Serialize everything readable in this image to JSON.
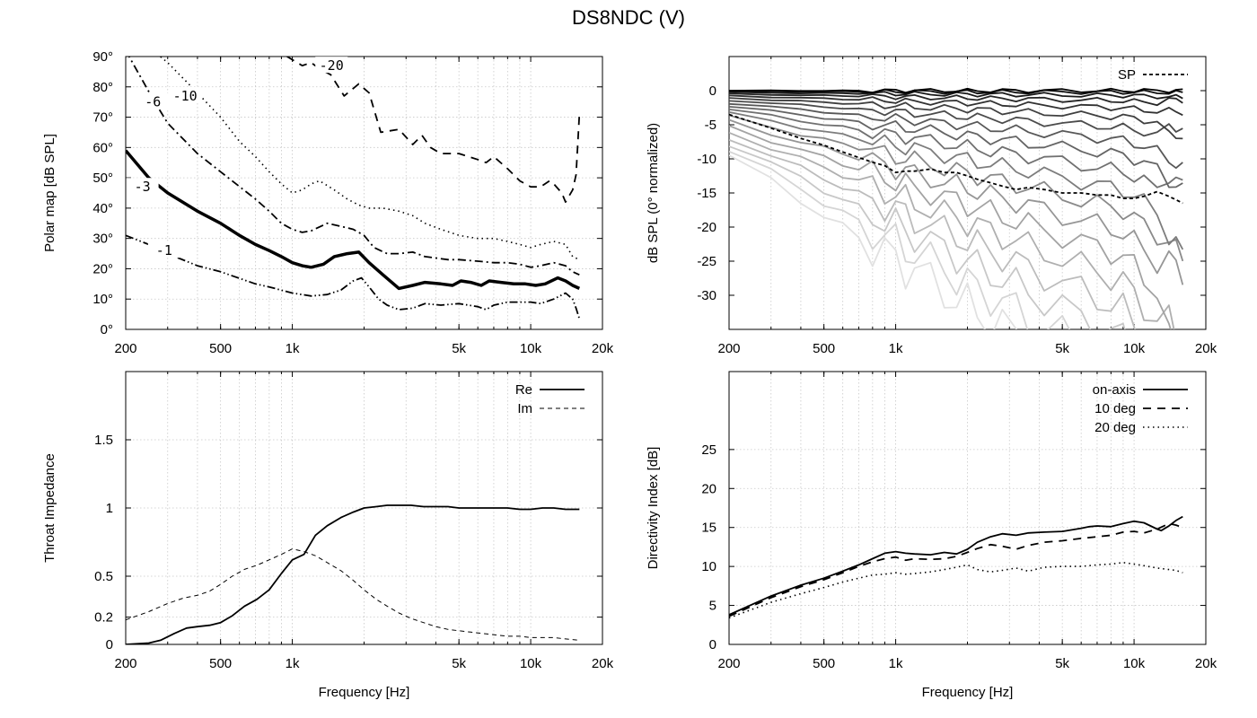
{
  "title": "DS8NDC (V)",
  "chart_data": [
    {
      "id": "polar",
      "type": "line",
      "xscale": "log",
      "xlim": [
        200,
        20000
      ],
      "ylim": [
        0,
        90
      ],
      "xticks": [
        200,
        500,
        1000,
        5000,
        10000,
        20000
      ],
      "xtick_labels": [
        "200",
        "500",
        "1k",
        "5k",
        "10k",
        "20k"
      ],
      "yticks": [
        0,
        10,
        20,
        30,
        40,
        50,
        60,
        70,
        80,
        90
      ],
      "ytick_labels": [
        "0°",
        "10°",
        "20°",
        "30°",
        "40°",
        "50°",
        "60°",
        "70°",
        "80°",
        "90°"
      ],
      "xlabel": "",
      "ylabel": "Polar map [dB SPL]",
      "series": [
        {
          "name": "-1",
          "label_at": [
            290,
            26
          ],
          "style": "dashdotdot",
          "x": [
            200,
            250,
            300,
            400,
            500,
            700,
            800,
            1000,
            1200,
            1400,
            1600,
            1800,
            1950,
            2100,
            2300,
            2500,
            2800,
            3200,
            3600,
            4200,
            5000,
            6000,
            6500,
            7000,
            8000,
            9000,
            10000,
            11000,
            12500,
            14000,
            15000,
            15500,
            16000
          ],
          "y": [
            31,
            28,
            25,
            21,
            19,
            15,
            14,
            12,
            11,
            11.5,
            13,
            16,
            17,
            14,
            10,
            8,
            6.5,
            7,
            8.5,
            8,
            8.5,
            7.5,
            6.5,
            8,
            9,
            9,
            9,
            8.5,
            10,
            12,
            10,
            7,
            3.5
          ]
        },
        {
          "name": "-3",
          "label_at": [
            235,
            47
          ],
          "style": "thick",
          "x": [
            200,
            250,
            300,
            400,
            500,
            600,
            700,
            800,
            900,
            1000,
            1100,
            1200,
            1350,
            1500,
            1700,
            1900,
            2100,
            2400,
            2800,
            3200,
            3600,
            4200,
            4700,
            5100,
            5600,
            6200,
            6700,
            7500,
            8500,
            9500,
            10500,
            11500,
            13000,
            14000,
            15000,
            16000
          ],
          "y": [
            59,
            50,
            45,
            39,
            35,
            31,
            28,
            26,
            24,
            22,
            21,
            20.5,
            21.5,
            24,
            25,
            25.5,
            22,
            18,
            13.5,
            14.5,
            15.5,
            15,
            14.5,
            16,
            15.5,
            14.5,
            16,
            15.5,
            15,
            15,
            14.5,
            15,
            17,
            16,
            14.5,
            13.5
          ]
        },
        {
          "name": "-6",
          "label_at": [
            260,
            75
          ],
          "style": "dashdot",
          "x": [
            200,
            260,
            300,
            400,
            500,
            700,
            800,
            900,
            1000,
            1100,
            1200,
            1400,
            1600,
            1800,
            2000,
            2200,
            2500,
            2800,
            3200,
            3600,
            4500,
            5000,
            6000,
            7000,
            8000,
            9000,
            10000,
            11000,
            12500,
            14000,
            15000,
            16000
          ],
          "y": [
            92,
            76,
            68,
            58,
            52,
            43,
            39,
            35,
            33,
            32,
            32.5,
            35,
            34,
            33,
            31,
            27,
            25,
            25,
            25.5,
            24,
            23,
            23,
            22.5,
            22,
            22,
            21.5,
            20.5,
            21,
            22,
            21,
            19,
            18
          ]
        },
        {
          "name": "-10",
          "label_at": [
            355,
            77
          ],
          "style": "dotted",
          "x": [
            260,
            300,
            400,
            500,
            600,
            700,
            800,
            900,
            1000,
            1100,
            1200,
            1300,
            1500,
            1700,
            1900,
            2100,
            2400,
            2800,
            3200,
            3600,
            4200,
            5000,
            6000,
            7000,
            8000,
            9000,
            10000,
            11000,
            12500,
            14000,
            15000,
            16000
          ],
          "y": [
            92,
            88,
            78,
            70,
            62,
            57,
            52,
            48,
            45,
            46,
            48,
            49,
            46,
            43,
            41,
            40,
            40,
            39,
            37.5,
            35,
            33,
            31,
            30,
            30,
            29,
            28,
            27,
            28,
            29,
            28,
            24,
            23
          ]
        },
        {
          "name": "-20",
          "label_at": [
            1460,
            87
          ],
          "style": "dashed",
          "x": [
            950,
            1100,
            1200,
            1300,
            1450,
            1650,
            1900,
            2100,
            2350,
            2800,
            3200,
            3500,
            3800,
            4200,
            5000,
            6000,
            6500,
            7000,
            8000,
            9000,
            10000,
            11000,
            12000,
            12500,
            13500,
            14000,
            15000,
            15500,
            16000
          ],
          "y": [
            90,
            87,
            88,
            86,
            84,
            77,
            81,
            78,
            65,
            66,
            61,
            64,
            60,
            58,
            58,
            56,
            55,
            57,
            53,
            49,
            47,
            47,
            49,
            48,
            45,
            42,
            46,
            51,
            71
          ]
        }
      ]
    },
    {
      "id": "normalized",
      "type": "line",
      "xscale": "log",
      "xlim": [
        200,
        20000
      ],
      "ylim": [
        -35,
        5
      ],
      "xticks": [
        200,
        500,
        1000,
        5000,
        10000,
        20000
      ],
      "xtick_labels": [
        "200",
        "500",
        "1k",
        "5k",
        "10k",
        "20k"
      ],
      "yticks": [
        0,
        -5,
        -10,
        -15,
        -20,
        -25,
        -30
      ],
      "ytick_labels": [
        "0",
        "-5",
        "-10",
        "-15",
        "-20",
        "-25",
        "-30"
      ],
      "xlabel": "",
      "ylabel": "dB SPL (0° normalized)",
      "legend": [
        "SP"
      ],
      "legend_loc": "top-right",
      "family_count": 19,
      "family_note": "grey curves for off-axis angles 0° (black) to 90° (light grey)",
      "sp": {
        "x": [
          200,
          300,
          400,
          500,
          600,
          700,
          800,
          900,
          1000,
          1100,
          1200,
          1400,
          1600,
          1800,
          2000,
          2200,
          2500,
          2800,
          3200,
          3600,
          4200,
          5000,
          6000,
          7000,
          8000,
          9000,
          10000,
          11000,
          12500,
          14000,
          15000,
          16000
        ],
        "y": [
          -3.5,
          -5.5,
          -7,
          -8,
          -9,
          -9.8,
          -10.5,
          -11,
          -12,
          -11.8,
          -11.8,
          -11.5,
          -12,
          -12,
          -12.5,
          -13,
          -13.5,
          -14,
          -14.5,
          -14.2,
          -14.5,
          -15,
          -15,
          -15.3,
          -15.3,
          -15.8,
          -15.8,
          -15.5,
          -14.8,
          -15.5,
          -16,
          -16.5
        ]
      }
    },
    {
      "id": "impedance",
      "type": "line",
      "xscale": "log",
      "xlim": [
        200,
        20000
      ],
      "ylim": [
        0,
        2
      ],
      "xticks": [
        200,
        500,
        1000,
        5000,
        10000,
        20000
      ],
      "xtick_labels": [
        "200",
        "500",
        "1k",
        "5k",
        "10k",
        "20k"
      ],
      "yticks": [
        0,
        0.2,
        0.5,
        1,
        1.5
      ],
      "ytick_labels": [
        "0",
        "0.2",
        "0.5",
        "1",
        "1.5"
      ],
      "xlabel": "Frequency [Hz]",
      "ylabel": "Throat Impedance",
      "legend": [
        "Re",
        "Im"
      ],
      "legend_loc": "top-right",
      "series": [
        {
          "name": "Re",
          "style": "solid",
          "x": [
            200,
            250,
            280,
            320,
            360,
            400,
            450,
            500,
            560,
            630,
            710,
            800,
            900,
            1000,
            1120,
            1250,
            1400,
            1600,
            1800,
            2000,
            2250,
            2500,
            2800,
            3150,
            3550,
            4000,
            4500,
            5000,
            5600,
            6300,
            7100,
            8000,
            9000,
            10000,
            11200,
            12500,
            14000,
            16000
          ],
          "y": [
            0.0,
            0.01,
            0.03,
            0.08,
            0.12,
            0.13,
            0.14,
            0.16,
            0.21,
            0.28,
            0.33,
            0.4,
            0.52,
            0.62,
            0.66,
            0.8,
            0.87,
            0.93,
            0.97,
            1.0,
            1.01,
            1.02,
            1.02,
            1.02,
            1.01,
            1.01,
            1.01,
            1.0,
            1.0,
            1.0,
            1.0,
            1.0,
            0.99,
            0.99,
            1.0,
            1.0,
            0.99,
            0.99
          ]
        },
        {
          "name": "Im",
          "style": "dashed",
          "x": [
            200,
            250,
            300,
            350,
            400,
            450,
            500,
            560,
            630,
            710,
            800,
            900,
            1000,
            1120,
            1250,
            1400,
            1600,
            1800,
            2000,
            2250,
            2500,
            2800,
            3150,
            3550,
            4000,
            4500,
            5000,
            5600,
            6300,
            7100,
            8000,
            9000,
            10000,
            11200,
            12500,
            14000,
            16000
          ],
          "y": [
            0.18,
            0.24,
            0.3,
            0.34,
            0.36,
            0.39,
            0.44,
            0.5,
            0.55,
            0.58,
            0.62,
            0.66,
            0.7,
            0.68,
            0.65,
            0.6,
            0.54,
            0.47,
            0.4,
            0.33,
            0.28,
            0.23,
            0.19,
            0.16,
            0.13,
            0.11,
            0.1,
            0.09,
            0.08,
            0.07,
            0.06,
            0.06,
            0.05,
            0.05,
            0.05,
            0.04,
            0.03
          ]
        }
      ]
    },
    {
      "id": "directivity",
      "type": "line",
      "xscale": "log",
      "xlim": [
        200,
        20000
      ],
      "ylim": [
        0,
        35
      ],
      "xticks": [
        200,
        500,
        1000,
        5000,
        10000,
        20000
      ],
      "xtick_labels": [
        "200",
        "500",
        "1k",
        "5k",
        "10k",
        "20k"
      ],
      "yticks": [
        0,
        5,
        10,
        15,
        20,
        25
      ],
      "ytick_labels": [
        "0",
        "5",
        "10",
        "15",
        "20",
        "25"
      ],
      "xlabel": "Frequency [Hz]",
      "ylabel": "Directivity Index [dB]",
      "legend": [
        "on-axis",
        "10 deg",
        "20 deg"
      ],
      "legend_loc": "top-right",
      "series": [
        {
          "name": "on-axis",
          "style": "solid",
          "x": [
            200,
            300,
            400,
            500,
            600,
            700,
            800,
            900,
            1000,
            1100,
            1200,
            1400,
            1600,
            1800,
            2000,
            2200,
            2500,
            2800,
            3200,
            3600,
            4200,
            5000,
            6000,
            6500,
            7000,
            8000,
            9000,
            10000,
            11000,
            12500,
            13000,
            14000,
            15000,
            16000
          ],
          "y": [
            3.8,
            6.2,
            7.6,
            8.5,
            9.4,
            10.2,
            11.0,
            11.7,
            11.9,
            11.7,
            11.6,
            11.5,
            11.8,
            11.6,
            12.2,
            13.1,
            13.8,
            14.2,
            14.0,
            14.3,
            14.4,
            14.5,
            14.9,
            15.1,
            15.2,
            15.1,
            15.5,
            15.8,
            15.6,
            14.8,
            14.6,
            15.2,
            15.9,
            16.4
          ]
        },
        {
          "name": "10 deg",
          "style": "dashed",
          "x": [
            200,
            300,
            400,
            500,
            600,
            700,
            800,
            900,
            1000,
            1100,
            1200,
            1400,
            1600,
            1800,
            2000,
            2200,
            2500,
            2800,
            3200,
            3600,
            4200,
            5000,
            6000,
            7000,
            8000,
            9000,
            10000,
            11000,
            12500,
            14000,
            15000,
            16000
          ],
          "y": [
            3.6,
            6.0,
            7.4,
            8.3,
            9.2,
            10.0,
            10.6,
            11.0,
            11.2,
            10.8,
            11.0,
            10.9,
            11.0,
            11.3,
            11.8,
            12.3,
            12.8,
            12.6,
            12.2,
            12.7,
            13.1,
            13.3,
            13.6,
            13.8,
            14.0,
            14.4,
            14.5,
            14.3,
            14.8,
            15.5,
            15.3,
            15.0
          ]
        },
        {
          "name": "20 deg",
          "style": "dotted",
          "x": [
            200,
            300,
            400,
            500,
            600,
            700,
            800,
            900,
            1000,
            1100,
            1200,
            1400,
            1600,
            1800,
            2000,
            2200,
            2500,
            2800,
            3200,
            3600,
            4200,
            5000,
            6000,
            7000,
            8000,
            9000,
            10000,
            11000,
            12500,
            14000,
            15000,
            16000
          ],
          "y": [
            3.4,
            5.4,
            6.5,
            7.3,
            8.0,
            8.5,
            8.9,
            9.0,
            9.2,
            9.0,
            9.1,
            9.3,
            9.6,
            9.9,
            10.2,
            9.6,
            9.3,
            9.5,
            9.8,
            9.4,
            9.9,
            10.0,
            10.0,
            10.2,
            10.3,
            10.5,
            10.3,
            10.1,
            9.8,
            9.6,
            9.5,
            9.2
          ]
        }
      ]
    }
  ]
}
